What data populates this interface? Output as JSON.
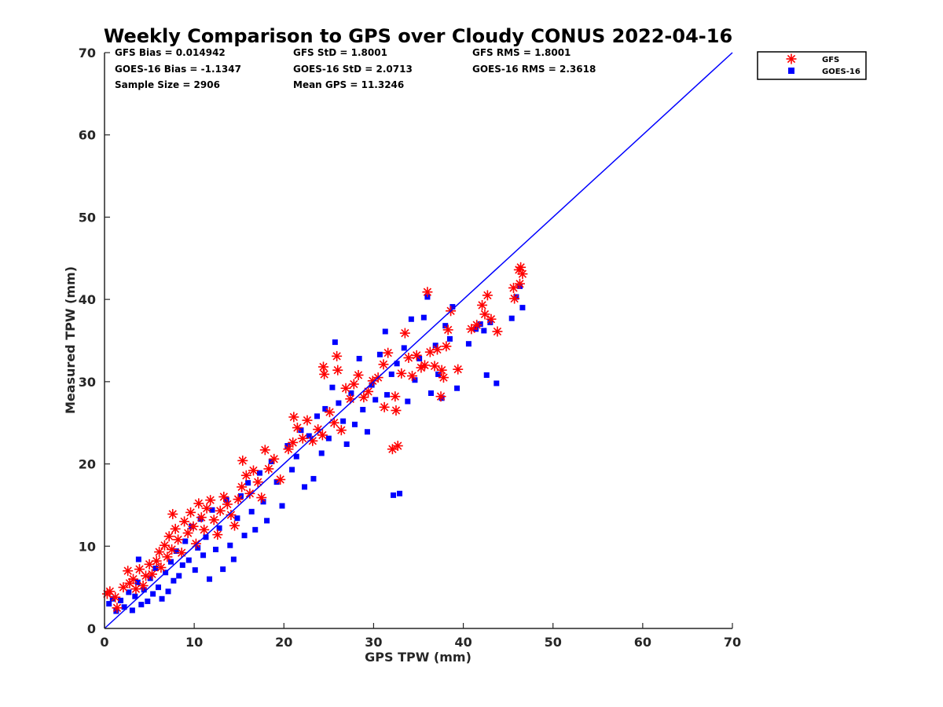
{
  "chart_data": {
    "type": "scatter",
    "title": "Weekly Comparison to GPS over Cloudy CONUS 2022-04-16",
    "xlabel": "GPS TPW (mm)",
    "ylabel": "Measured TPW (mm)",
    "xlim": [
      0,
      70
    ],
    "ylim": [
      0,
      70
    ],
    "xticks": [
      "0",
      "10",
      "20",
      "30",
      "40",
      "50",
      "60",
      "70"
    ],
    "yticks": [
      "0",
      "10",
      "20",
      "30",
      "40",
      "50",
      "60",
      "70"
    ],
    "grid": false,
    "legend_position": "outside-top-right",
    "stats": [
      "GFS Bias = 0.014942",
      "GFS StD = 1.8001",
      "GFS RMS = 1.8001",
      "GOES-16 Bias = -1.1347",
      "GOES-16 StD = 2.0713",
      "GOES-16 RMS = 2.3618",
      "Sample Size = 2906",
      "Mean GPS = 11.3246"
    ],
    "reference_line": {
      "x": [
        0,
        70
      ],
      "y": [
        0,
        70
      ],
      "color": "#0000ff"
    },
    "series": [
      {
        "name": "GFS",
        "marker": "asterisk",
        "color": "#ff0000",
        "points": [
          [
            0.3,
            4.2
          ],
          [
            0.6,
            4.5
          ],
          [
            1.2,
            3.8
          ],
          [
            1.4,
            2.5
          ],
          [
            2.1,
            5.0
          ],
          [
            2.6,
            7.0
          ],
          [
            2.8,
            5.5
          ],
          [
            3.2,
            6.0
          ],
          [
            3.5,
            4.8
          ],
          [
            3.9,
            7.2
          ],
          [
            4.3,
            5.2
          ],
          [
            4.6,
            6.4
          ],
          [
            5.0,
            7.8
          ],
          [
            5.3,
            6.6
          ],
          [
            5.8,
            8.2
          ],
          [
            6.1,
            9.3
          ],
          [
            6.3,
            7.4
          ],
          [
            6.7,
            10.1
          ],
          [
            7.0,
            8.7
          ],
          [
            7.2,
            11.2
          ],
          [
            7.5,
            9.6
          ],
          [
            7.6,
            13.9
          ],
          [
            7.9,
            12.1
          ],
          [
            8.2,
            10.8
          ],
          [
            8.6,
            9.2
          ],
          [
            8.9,
            13.0
          ],
          [
            9.3,
            11.6
          ],
          [
            9.6,
            14.1
          ],
          [
            9.9,
            12.4
          ],
          [
            10.2,
            10.3
          ],
          [
            10.5,
            15.2
          ],
          [
            10.8,
            13.5
          ],
          [
            11.1,
            12.0
          ],
          [
            11.4,
            14.6
          ],
          [
            11.8,
            15.6
          ],
          [
            12.2,
            13.2
          ],
          [
            12.6,
            11.4
          ],
          [
            12.9,
            14.3
          ],
          [
            13.3,
            16.0
          ],
          [
            13.7,
            15.1
          ],
          [
            14.1,
            13.8
          ],
          [
            14.5,
            12.5
          ],
          [
            14.9,
            15.7
          ],
          [
            15.3,
            17.2
          ],
          [
            15.4,
            20.4
          ],
          [
            15.8,
            18.6
          ],
          [
            16.2,
            16.4
          ],
          [
            16.6,
            19.2
          ],
          [
            17.1,
            17.8
          ],
          [
            17.5,
            15.9
          ],
          [
            17.9,
            21.7
          ],
          [
            18.3,
            19.4
          ],
          [
            18.9,
            20.6
          ],
          [
            19.6,
            18.1
          ],
          [
            20.5,
            21.8
          ],
          [
            21.0,
            22.6
          ],
          [
            21.1,
            25.7
          ],
          [
            21.5,
            24.4
          ],
          [
            22.1,
            23.1
          ],
          [
            22.6,
            25.3
          ],
          [
            23.2,
            22.8
          ],
          [
            23.8,
            24.2
          ],
          [
            24.3,
            23.5
          ],
          [
            24.4,
            31.8
          ],
          [
            24.5,
            30.9
          ],
          [
            25.1,
            26.3
          ],
          [
            25.6,
            25.0
          ],
          [
            25.9,
            33.1
          ],
          [
            26.0,
            31.4
          ],
          [
            26.4,
            24.1
          ],
          [
            26.9,
            29.2
          ],
          [
            27.4,
            27.9
          ],
          [
            27.8,
            29.7
          ],
          [
            28.3,
            30.8
          ],
          [
            28.9,
            28.1
          ],
          [
            29.4,
            28.8
          ],
          [
            29.9,
            30.1
          ],
          [
            30.5,
            30.5
          ],
          [
            31.1,
            32.1
          ],
          [
            31.2,
            26.9
          ],
          [
            31.6,
            33.5
          ],
          [
            32.1,
            21.8
          ],
          [
            32.4,
            28.2
          ],
          [
            32.5,
            26.5
          ],
          [
            32.7,
            22.2
          ],
          [
            33.1,
            31.0
          ],
          [
            33.5,
            35.9
          ],
          [
            33.9,
            32.9
          ],
          [
            34.3,
            30.7
          ],
          [
            34.8,
            33.2
          ],
          [
            35.3,
            31.7
          ],
          [
            35.7,
            32.0
          ],
          [
            36.0,
            40.9
          ],
          [
            36.3,
            33.6
          ],
          [
            36.8,
            31.9
          ],
          [
            37.1,
            33.9
          ],
          [
            37.5,
            28.2
          ],
          [
            37.6,
            31.4
          ],
          [
            37.8,
            30.5
          ],
          [
            38.1,
            34.3
          ],
          [
            38.3,
            36.3
          ],
          [
            38.6,
            38.6
          ],
          [
            39.4,
            31.5
          ],
          [
            40.9,
            36.4
          ],
          [
            41.5,
            36.9
          ],
          [
            42.1,
            39.3
          ],
          [
            42.4,
            38.2
          ],
          [
            42.7,
            40.5
          ],
          [
            43.1,
            37.6
          ],
          [
            43.8,
            36.1
          ],
          [
            45.6,
            41.4
          ],
          [
            45.7,
            40.1
          ],
          [
            46.2,
            43.6
          ],
          [
            46.4,
            43.9
          ],
          [
            46.6,
            43.1
          ],
          [
            46.3,
            41.9
          ]
        ]
      },
      {
        "name": "GOES-16",
        "marker": "square",
        "color": "#0000ff",
        "points": [
          [
            0.5,
            3.0
          ],
          [
            0.9,
            3.6
          ],
          [
            1.3,
            2.1
          ],
          [
            1.8,
            3.4
          ],
          [
            2.2,
            2.6
          ],
          [
            2.7,
            4.4
          ],
          [
            3.1,
            2.2
          ],
          [
            3.4,
            3.9
          ],
          [
            3.7,
            5.6
          ],
          [
            3.8,
            8.4
          ],
          [
            4.1,
            2.9
          ],
          [
            4.4,
            4.7
          ],
          [
            4.8,
            3.3
          ],
          [
            5.1,
            6.1
          ],
          [
            5.4,
            4.2
          ],
          [
            5.7,
            7.3
          ],
          [
            6.0,
            5.0
          ],
          [
            6.4,
            3.6
          ],
          [
            6.8,
            6.8
          ],
          [
            7.1,
            4.5
          ],
          [
            7.4,
            8.1
          ],
          [
            7.7,
            5.8
          ],
          [
            8.0,
            9.4
          ],
          [
            8.3,
            6.4
          ],
          [
            8.7,
            7.7
          ],
          [
            9.0,
            10.6
          ],
          [
            9.4,
            8.3
          ],
          [
            9.7,
            12.4
          ],
          [
            10.1,
            7.1
          ],
          [
            10.4,
            9.8
          ],
          [
            10.7,
            13.3
          ],
          [
            11.0,
            8.9
          ],
          [
            11.3,
            11.1
          ],
          [
            11.7,
            6.0
          ],
          [
            12.0,
            14.4
          ],
          [
            12.4,
            9.6
          ],
          [
            12.8,
            12.2
          ],
          [
            13.2,
            7.2
          ],
          [
            13.6,
            15.6
          ],
          [
            14.0,
            10.1
          ],
          [
            14.4,
            8.4
          ],
          [
            14.8,
            13.4
          ],
          [
            15.2,
            16.1
          ],
          [
            15.6,
            11.3
          ],
          [
            16.0,
            17.7
          ],
          [
            16.4,
            14.2
          ],
          [
            16.8,
            12.0
          ],
          [
            17.3,
            18.9
          ],
          [
            17.7,
            15.4
          ],
          [
            18.1,
            13.1
          ],
          [
            18.6,
            20.3
          ],
          [
            19.2,
            17.8
          ],
          [
            19.8,
            14.9
          ],
          [
            20.4,
            22.2
          ],
          [
            20.9,
            19.3
          ],
          [
            21.4,
            20.9
          ],
          [
            21.9,
            24.1
          ],
          [
            22.3,
            17.2
          ],
          [
            22.8,
            23.4
          ],
          [
            23.3,
            18.2
          ],
          [
            23.7,
            25.8
          ],
          [
            24.2,
            21.3
          ],
          [
            24.6,
            26.7
          ],
          [
            25.0,
            23.1
          ],
          [
            25.4,
            29.3
          ],
          [
            25.7,
            34.8
          ],
          [
            26.1,
            27.4
          ],
          [
            26.6,
            25.2
          ],
          [
            27.0,
            22.4
          ],
          [
            27.5,
            28.6
          ],
          [
            27.9,
            24.8
          ],
          [
            28.4,
            32.8
          ],
          [
            28.8,
            26.6
          ],
          [
            29.3,
            23.9
          ],
          [
            29.8,
            29.6
          ],
          [
            30.2,
            27.8
          ],
          [
            30.7,
            33.3
          ],
          [
            31.3,
            36.1
          ],
          [
            31.5,
            28.4
          ],
          [
            32.0,
            30.9
          ],
          [
            32.2,
            16.2
          ],
          [
            32.6,
            32.2
          ],
          [
            32.9,
            16.4
          ],
          [
            33.4,
            34.1
          ],
          [
            33.8,
            27.6
          ],
          [
            34.2,
            37.6
          ],
          [
            34.6,
            30.2
          ],
          [
            35.1,
            32.8
          ],
          [
            35.6,
            37.8
          ],
          [
            36.0,
            40.3
          ],
          [
            36.4,
            28.6
          ],
          [
            36.9,
            34.4
          ],
          [
            37.2,
            30.9
          ],
          [
            37.6,
            28.0
          ],
          [
            38.0,
            36.8
          ],
          [
            38.5,
            35.2
          ],
          [
            38.8,
            39.1
          ],
          [
            39.3,
            29.2
          ],
          [
            40.6,
            34.6
          ],
          [
            41.4,
            36.4
          ],
          [
            41.9,
            37.0
          ],
          [
            42.3,
            36.2
          ],
          [
            42.6,
            30.8
          ],
          [
            43.0,
            37.2
          ],
          [
            43.7,
            29.8
          ],
          [
            45.4,
            37.7
          ],
          [
            45.9,
            40.3
          ],
          [
            46.3,
            41.6
          ],
          [
            46.6,
            39.0
          ]
        ]
      }
    ]
  }
}
